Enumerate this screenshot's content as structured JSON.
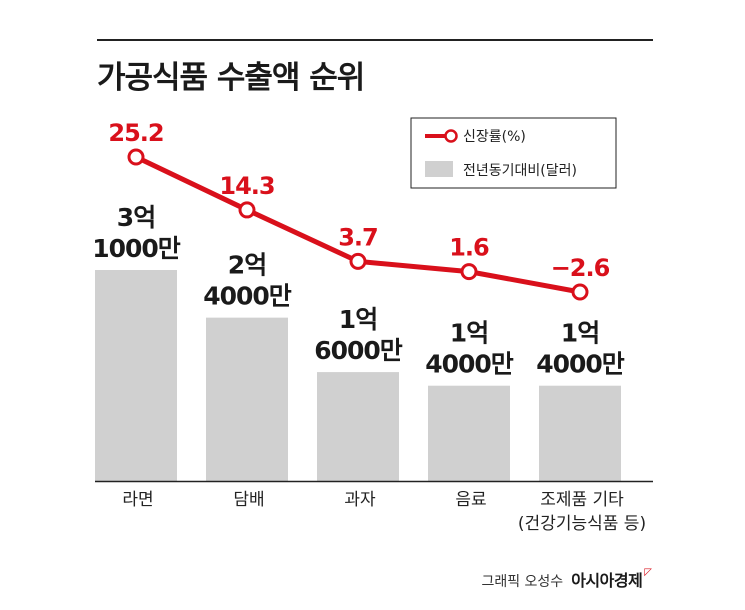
{
  "title": "가공식품 수출액 순위",
  "footer": {
    "credit": "그래픽 오성수",
    "brand": "아시아경제"
  },
  "colors": {
    "line": "#d9101b",
    "bar": "#d0d0d0",
    "text": "#1a1a1a"
  },
  "chart_data": {
    "type": "bar",
    "categories": [
      [
        "라면"
      ],
      [
        "담배"
      ],
      [
        "과자"
      ],
      [
        "음료"
      ],
      [
        "조제품 기타",
        "(건강기능식품 등)"
      ]
    ],
    "bar_labels": [
      [
        "3억",
        "1000만"
      ],
      [
        "2억",
        "4000만"
      ],
      [
        "1억",
        "6000만"
      ],
      [
        "1억",
        "4000만"
      ],
      [
        "1억",
        "4000만"
      ]
    ],
    "series": [
      {
        "name": "전년동기대비(달러)",
        "kind": "bar",
        "values": [
          310000000,
          240000000,
          160000000,
          140000000,
          140000000
        ]
      },
      {
        "name": "신장률(%)",
        "kind": "line",
        "values": [
          25.2,
          14.3,
          3.7,
          1.6,
          -2.6
        ],
        "labels": [
          "25.2",
          "14.3",
          "3.7",
          "1.6",
          "−2.6"
        ]
      }
    ],
    "legend": {
      "position": "top-right",
      "items": [
        "신장률(%)",
        "전년동기대비(달러)"
      ]
    },
    "grid": false
  }
}
